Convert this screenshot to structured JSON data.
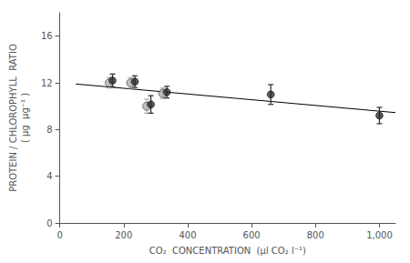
{
  "chart_data": {
    "type": "scatter",
    "x_label": "CO₂  CONCENTRATION  (μl CO₂ l⁻¹)",
    "y_label": "PROTEIN / CHLOROPHYLL  RATIO\n( μg  μg⁻¹ )",
    "xlim": [
      0,
      1050
    ],
    "ylim": [
      0,
      18
    ],
    "xticks": [
      0,
      200,
      400,
      600,
      800,
      1000
    ],
    "yticks": [
      0,
      4,
      8,
      12,
      16
    ],
    "grid": false,
    "series": [
      {
        "type": "line",
        "color": "#000000",
        "x": [
          50,
          1050
        ],
        "values": [
          11.9,
          9.45
        ]
      },
      {
        "type": "scatter",
        "color": "#b0b0b0",
        "x": [
          155,
          222,
          272,
          322
        ],
        "values": [
          12.0,
          12.0,
          10.0,
          11.1
        ],
        "yerr": [
          0.45,
          0.45,
          0.6,
          0.45
        ]
      },
      {
        "type": "scatter",
        "color": "#2a2a2a",
        "x": [
          165,
          235,
          285,
          335,
          660,
          1000
        ],
        "values": [
          12.2,
          12.1,
          10.15,
          11.2,
          11.0,
          9.2
        ],
        "yerr": [
          0.55,
          0.5,
          0.75,
          0.5,
          0.85,
          0.7
        ]
      }
    ]
  }
}
